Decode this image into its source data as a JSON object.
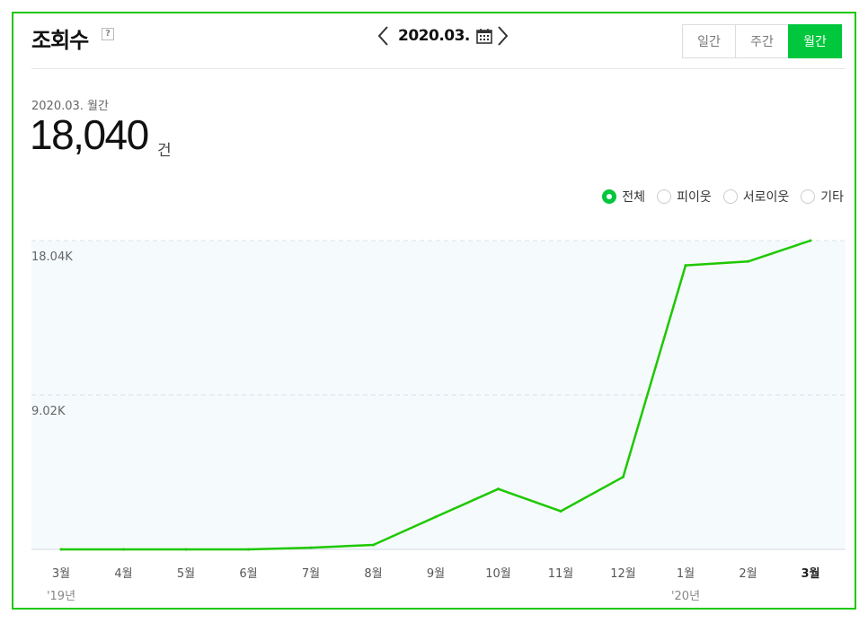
{
  "header": {
    "title": "조회수",
    "help_label": "?",
    "date": "2020.03.",
    "period_tabs": [
      {
        "label": "일간",
        "active": false
      },
      {
        "label": "주간",
        "active": false
      },
      {
        "label": "월간",
        "active": true
      }
    ]
  },
  "summary": {
    "period_label": "2020.03. 월간",
    "value": "18,040",
    "unit": "건"
  },
  "legend": [
    {
      "label": "전체",
      "selected": true
    },
    {
      "label": "피이웃",
      "selected": false
    },
    {
      "label": "서로이웃",
      "selected": false
    },
    {
      "label": "기타",
      "selected": false
    }
  ],
  "colors": {
    "accent": "#00c73c",
    "line": "#1ec800",
    "border": "#1ec800",
    "plot_bg": "#f5fafd"
  },
  "chart_data": {
    "type": "line",
    "categories": [
      "3월",
      "4월",
      "5월",
      "6월",
      "7월",
      "8월",
      "9월",
      "10월",
      "11월",
      "12월",
      "1월",
      "2월",
      "3월"
    ],
    "year_labels": [
      {
        "index": 0,
        "label": "'19년"
      },
      {
        "index": 10,
        "label": "'20년"
      }
    ],
    "series": [
      {
        "values": [
          0,
          0,
          0,
          0,
          100,
          260,
          1900,
          3530,
          2230,
          4230,
          16590,
          16820,
          18040
        ]
      }
    ],
    "ytick_labels": [
      "9.02K",
      "18.04K"
    ],
    "yticks": [
      9020,
      18040
    ],
    "ylim": [
      0,
      18040
    ],
    "highlight_last_category": true,
    "grid": "horizontal dashed"
  }
}
